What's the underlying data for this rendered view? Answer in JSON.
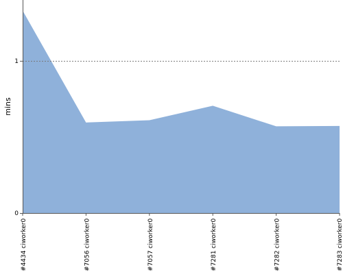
{
  "chart_data": {
    "type": "area",
    "title": "",
    "xlabel": "",
    "ylabel": "mins",
    "categories": [
      "#4434 ciworker0",
      "#7056 ciworker0",
      "#7057 ciworker0",
      "#7281 ciworker0",
      "#7282 ciworker0",
      "#7283 ciworker0"
    ],
    "series": [
      {
        "values": [
          1.33,
          0.595,
          0.61,
          0.705,
          0.57,
          0.572
        ]
      }
    ],
    "ylim": [
      0,
      1.4
    ],
    "yticks": [
      {
        "value": 0,
        "label": "0"
      },
      {
        "value": 1,
        "label": "1"
      }
    ],
    "reference_lines": [
      1
    ],
    "fill_color": "#8fb1da",
    "grid": false
  }
}
